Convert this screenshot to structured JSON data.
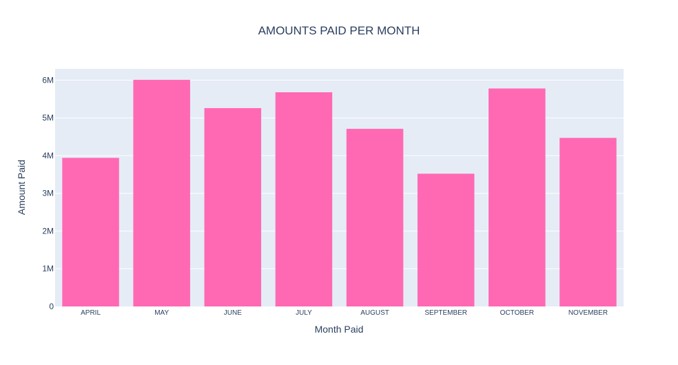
{
  "chart_data": {
    "type": "bar",
    "title": "AMOUNTS PAID PER MONTH",
    "xlabel": "Month Paid",
    "ylabel": "Amount Paid",
    "categories": [
      "APRIL",
      "MAY",
      "JUNE",
      "JULY",
      "AUGUST",
      "SEPTEMBER",
      "OCTOBER",
      "NOVEMBER"
    ],
    "values": [
      3940000,
      6010000,
      5260000,
      5680000,
      4710000,
      3520000,
      5780000,
      4470000
    ],
    "ylim": [
      0,
      6300000
    ],
    "yticks": [
      0,
      1000000,
      2000000,
      3000000,
      4000000,
      5000000,
      6000000
    ],
    "ytick_labels": [
      "0",
      "1M",
      "2M",
      "3M",
      "4M",
      "5M",
      "6M"
    ],
    "grid": true,
    "colors": {
      "bar": "#ff69b4",
      "plot_background": "#e5ecf6",
      "grid": "#ffffff",
      "text": "#2a3f5f"
    }
  }
}
